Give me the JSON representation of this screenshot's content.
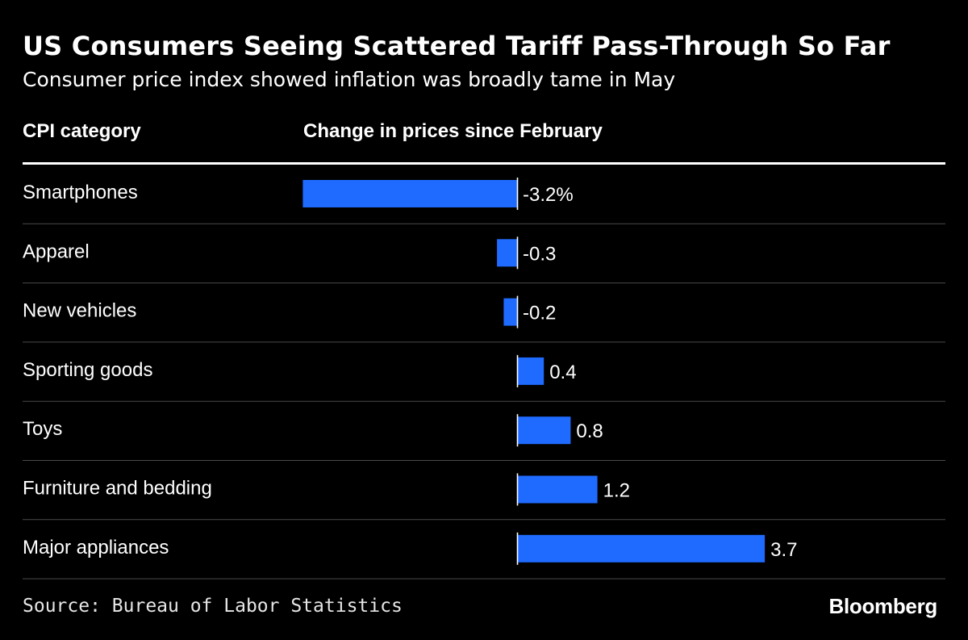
{
  "title": "US Consumers Seeing Scattered Tariff Pass-Through So Far",
  "subtitle": "Consumer price index showed inflation was broadly tame in May",
  "columns": {
    "category": "CPI category",
    "value": "Change in prices since February"
  },
  "source": "Source: Bureau of Labor Statistics",
  "brand": "Bloomberg",
  "colors": {
    "bar": "#1F6BFF",
    "background": "#000000",
    "text": "#FFFFFF",
    "row_divider": "#4A4A4A"
  },
  "chart_data": {
    "type": "bar",
    "orientation": "horizontal",
    "categories": [
      "Smartphones",
      "Apparel",
      "New vehicles",
      "Sporting goods",
      "Toys",
      "Furniture and bedding",
      "Major appliances"
    ],
    "values": [
      -3.2,
      -0.3,
      -0.2,
      0.4,
      0.8,
      1.2,
      3.7
    ],
    "value_labels": [
      "-3.2%",
      "-0.3",
      "-0.2",
      "0.4",
      "0.8",
      "1.2",
      "3.7"
    ],
    "xlim": [
      -3.2,
      3.7
    ]
  }
}
